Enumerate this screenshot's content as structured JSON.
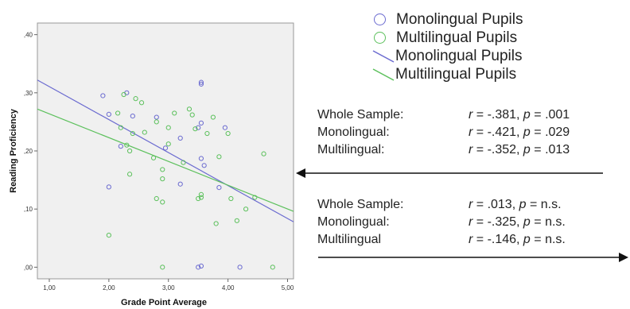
{
  "chart_data": {
    "type": "scatter",
    "xlabel": "Grade Point Average",
    "ylabel": "Reading Proficiency",
    "xlim": [
      0.8,
      5.1
    ],
    "ylim": [
      -0.02,
      0.42
    ],
    "xticks": [
      "1,00",
      "2,00",
      "3,00",
      "4,00",
      "5,00"
    ],
    "yticks": [
      ",00",
      ",10",
      ",20",
      ",30",
      ",40"
    ],
    "grid": false,
    "legend_position": "top-right",
    "series": [
      {
        "name": "Monolingual Pupils",
        "marker": "circle",
        "color": "#6b6bd0",
        "points": [
          [
            1.9,
            0.295
          ],
          [
            2.0,
            0.263
          ],
          [
            2.0,
            0.138
          ],
          [
            2.2,
            0.208
          ],
          [
            2.3,
            0.3
          ],
          [
            2.4,
            0.26
          ],
          [
            2.8,
            0.258
          ],
          [
            2.95,
            0.205
          ],
          [
            3.2,
            0.143
          ],
          [
            3.2,
            0.222
          ],
          [
            3.5,
            0.24
          ],
          [
            3.55,
            0.248
          ],
          [
            3.55,
            0.315
          ],
          [
            3.55,
            0.318
          ],
          [
            3.6,
            0.175
          ],
          [
            3.55,
            0.187
          ],
          [
            3.85,
            0.137
          ],
          [
            3.95,
            0.24
          ],
          [
            4.2,
            0.0
          ],
          [
            3.5,
            0.0
          ],
          [
            3.55,
            0.002
          ]
        ]
      },
      {
        "name": "Multilingual Pupils",
        "marker": "circle",
        "color": "#5cc05c",
        "points": [
          [
            2.0,
            0.055
          ],
          [
            2.15,
            0.265
          ],
          [
            2.25,
            0.297
          ],
          [
            2.2,
            0.24
          ],
          [
            2.3,
            0.21
          ],
          [
            2.35,
            0.2
          ],
          [
            2.4,
            0.23
          ],
          [
            2.35,
            0.16
          ],
          [
            2.45,
            0.29
          ],
          [
            2.55,
            0.283
          ],
          [
            2.6,
            0.232
          ],
          [
            2.75,
            0.188
          ],
          [
            2.8,
            0.25
          ],
          [
            2.8,
            0.118
          ],
          [
            2.9,
            0.152
          ],
          [
            2.9,
            0.112
          ],
          [
            2.9,
            0.168
          ],
          [
            3.0,
            0.24
          ],
          [
            3.0,
            0.212
          ],
          [
            3.1,
            0.265
          ],
          [
            3.25,
            0.18
          ],
          [
            3.35,
            0.272
          ],
          [
            3.4,
            0.262
          ],
          [
            3.45,
            0.238
          ],
          [
            3.55,
            0.12
          ],
          [
            3.55,
            0.125
          ],
          [
            3.65,
            0.23
          ],
          [
            3.75,
            0.258
          ],
          [
            3.8,
            0.075
          ],
          [
            3.85,
            0.19
          ],
          [
            4.0,
            0.23
          ],
          [
            4.05,
            0.118
          ],
          [
            4.15,
            0.08
          ],
          [
            4.3,
            0.1
          ],
          [
            4.45,
            0.12
          ],
          [
            4.6,
            0.195
          ],
          [
            4.75,
            0.0
          ],
          [
            2.9,
            0.0
          ],
          [
            3.5,
            0.118
          ]
        ]
      }
    ],
    "fit_lines": [
      {
        "name": "Monolingual Pupils",
        "color": "#6b6bd0",
        "x": [
          0.8,
          5.1
        ],
        "y": [
          0.322,
          0.078
        ]
      },
      {
        "name": "Multilingual Pupils",
        "color": "#5cc05c",
        "x": [
          0.8,
          5.1
        ],
        "y": [
          0.272,
          0.096
        ]
      }
    ]
  },
  "legend": [
    {
      "label": "Monolingual Pupils",
      "symbol": "circle",
      "color": "#6b6bd0"
    },
    {
      "label": "Multilingual Pupils",
      "symbol": "circle",
      "color": "#5cc05c"
    },
    {
      "label": "Monolingual Pupils",
      "symbol": "line",
      "color": "#6b6bd0"
    },
    {
      "label": "Multilingual Pupils",
      "symbol": "line",
      "color": "#5cc05c"
    }
  ],
  "stats_top": [
    {
      "label": "Whole Sample:",
      "r": "-.381",
      "p": ".001"
    },
    {
      "label": "Monolingual:",
      "r": "-.421",
      "p": ".029"
    },
    {
      "label": "Multilingual:",
      "r": "-.352",
      "p": ".013"
    }
  ],
  "stats_bottom": [
    {
      "label": "Whole Sample:",
      "r": " .013",
      "p": "n.s."
    },
    {
      "label": "Monolingual:",
      "r": "-.325",
      "p": "n.s."
    },
    {
      "label": "Multilingual",
      "r": "-.146",
      "p": "n.s."
    }
  ],
  "stat_symbols": {
    "r": "r",
    "p": "p",
    "eq": " = ",
    "sep": ", "
  }
}
